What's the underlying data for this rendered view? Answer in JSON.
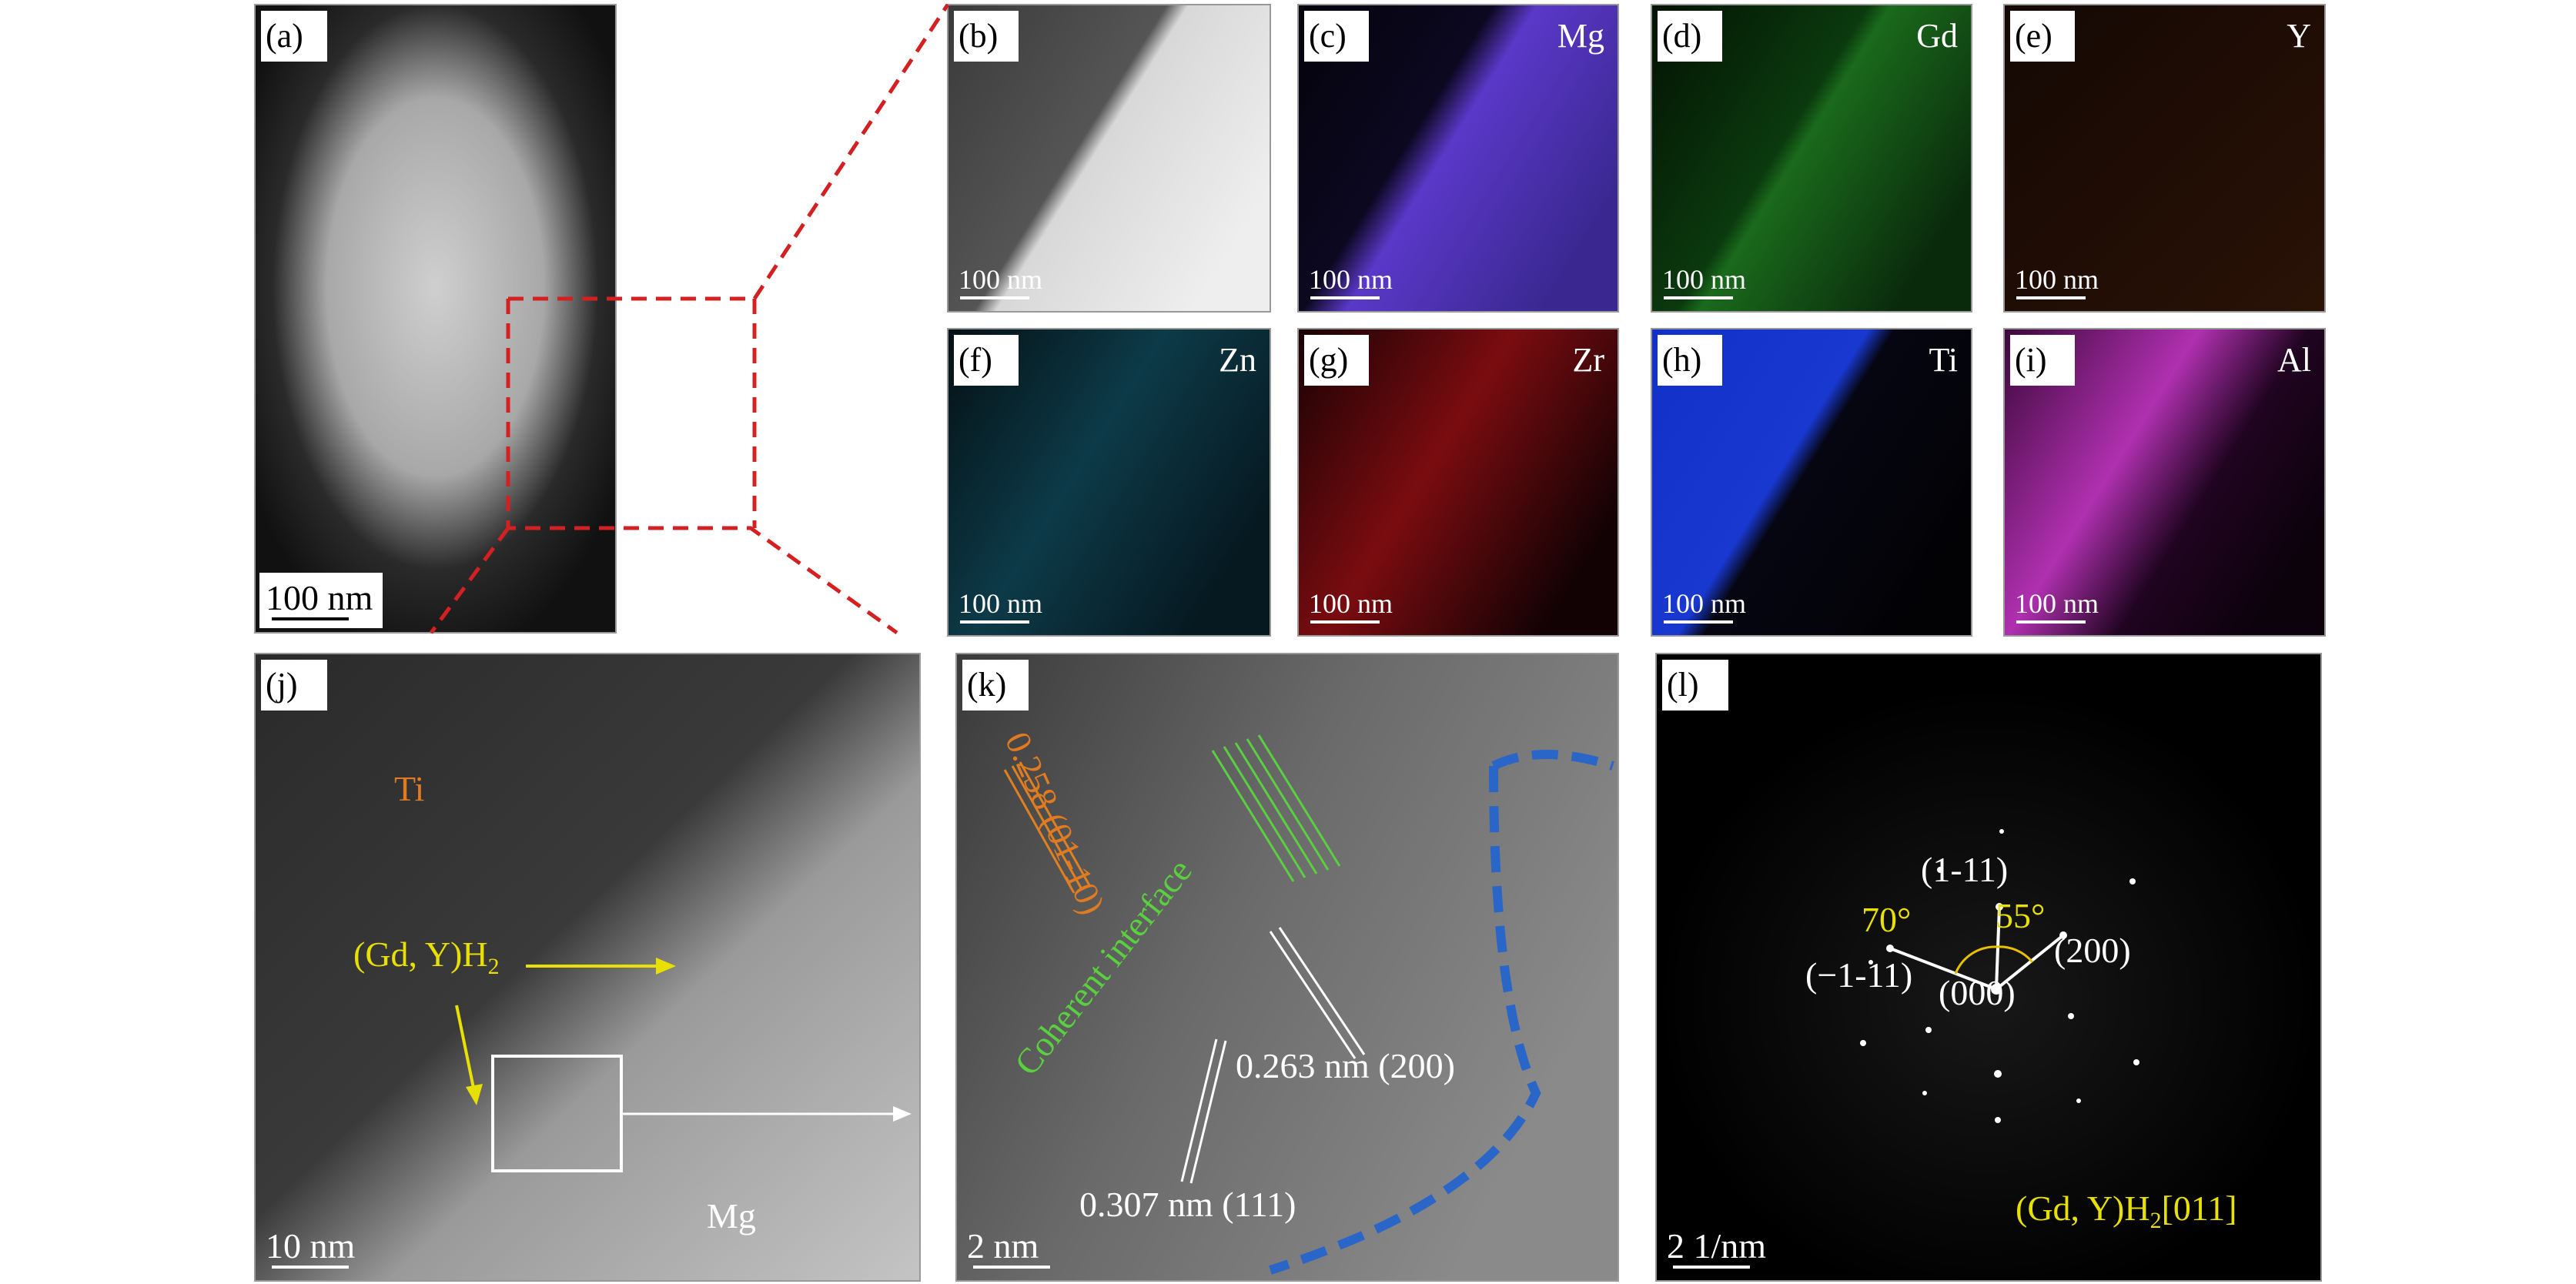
{
  "panels": [
    {
      "label": "(a)",
      "scale_bar": "100 nm"
    },
    {
      "label": "(b)",
      "scale_bar": "100 nm"
    },
    {
      "label": "(c)",
      "element": "Mg",
      "scale_bar": "100 nm"
    },
    {
      "label": "(d)",
      "element": "Gd",
      "scale_bar": "100 nm"
    },
    {
      "label": "(e)",
      "element": "Y",
      "scale_bar": "100 nm"
    },
    {
      "label": "(f)",
      "element": "Zn",
      "scale_bar": "100 nm"
    },
    {
      "label": "(g)",
      "element": "Zr",
      "scale_bar": "100 nm"
    },
    {
      "label": "(h)",
      "element": "Ti",
      "scale_bar": "100 nm"
    },
    {
      "label": "(i)",
      "element": "Al",
      "scale_bar": "100 nm"
    },
    {
      "label": "(j)",
      "scale_bar": "10 nm",
      "annotations": [
        "Ti",
        "Mg"
      ],
      "phase": [
        "(Gd, Y)H",
        "2"
      ]
    },
    {
      "label": "(k)",
      "scale_bar": "2 nm",
      "annotations": [
        "0.258 (01-10)",
        "Coherent interface",
        "0.263 nm (200)",
        "0.307 nm (111)"
      ]
    },
    {
      "label": "(l)",
      "scale_bar": "2 1/nm",
      "annotations": [
        "(1-11)",
        "70°",
        "55°",
        "(−1-11)",
        "(000)",
        "(200)"
      ],
      "phase": [
        "(Gd, Y)H",
        "2",
        "[011]"
      ]
    }
  ]
}
